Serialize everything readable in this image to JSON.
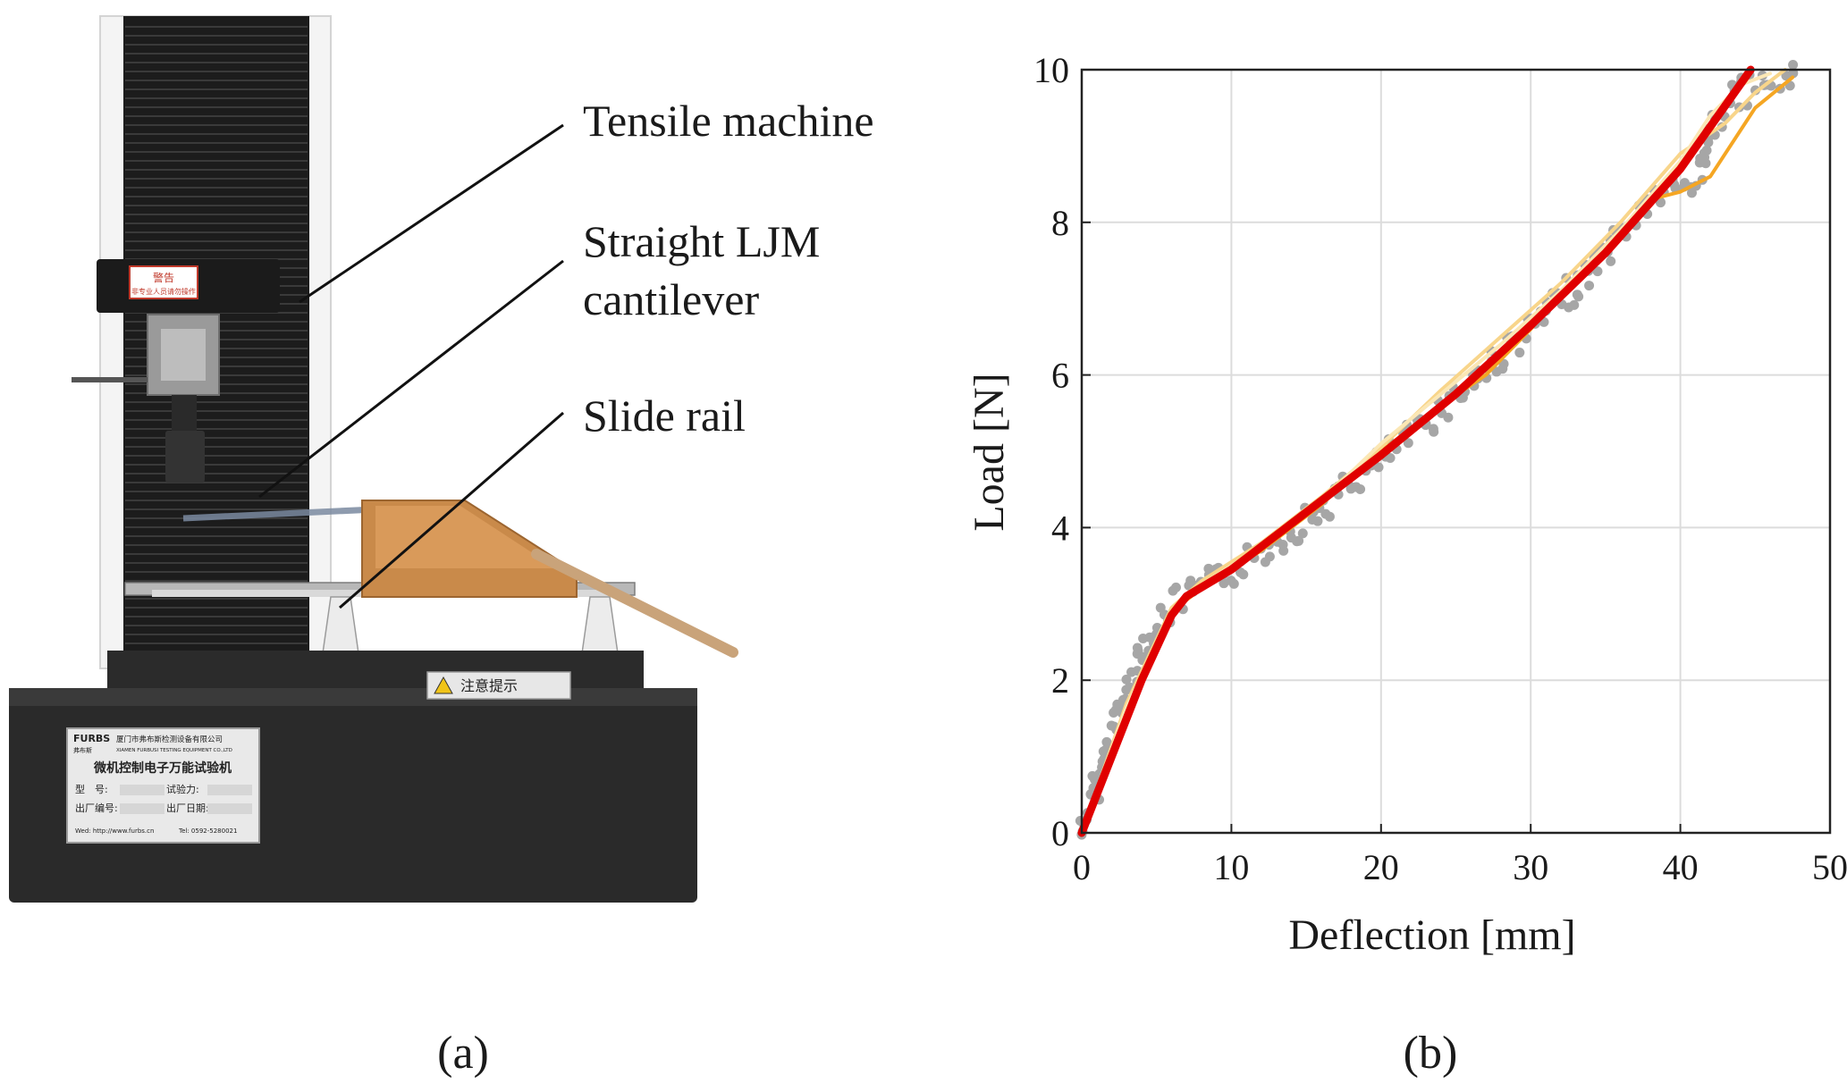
{
  "panels": {
    "a": {
      "label": "(a)",
      "annotations": [
        {
          "id": "tensile-machine",
          "lines": [
            "Tensile machine"
          ]
        },
        {
          "id": "cantilever",
          "lines": [
            "Straight LJM",
            "cantilever"
          ]
        },
        {
          "id": "slide-rail",
          "lines": [
            "Slide rail"
          ]
        }
      ],
      "machine_labels": {
        "warning_title": "警告",
        "warning_text": "非专业人员请勿操作",
        "brand": "FURBS",
        "brand_sub": "弗布斯",
        "company_cn": "厦门市弗布斯检测设备有限公司",
        "company_en": "XIAMEN FURBUSI TESTING EQUIPMENT CO.,LTD",
        "machine_name": "微机控制电子万能试验机",
        "field_model": "型　号:",
        "field_force": "试验力:",
        "field_serial": "出厂编号:",
        "field_date": "出厂日期:",
        "web": "Wed: http://www.furbs.cn",
        "tel": "Tel: 0592-5280021",
        "base_warning": "注意提示"
      }
    },
    "b": {
      "label": "(b)"
    }
  },
  "chart_data": {
    "type": "line",
    "xlabel": "Deflection [mm]",
    "ylabel": "Load [N]",
    "xlim": [
      0,
      50
    ],
    "ylim": [
      0,
      10
    ],
    "xticks": [
      0,
      10,
      20,
      30,
      40,
      50
    ],
    "yticks": [
      0,
      2,
      4,
      6,
      8,
      10
    ],
    "grid": true,
    "legend": "none",
    "series": [
      {
        "role": "measured",
        "color": "#a6a6a6",
        "style": "dots",
        "x": [
          0,
          2,
          4,
          6,
          7,
          10,
          14,
          18,
          22,
          26,
          30,
          34,
          38,
          41,
          42,
          44,
          46,
          48
        ],
        "y": [
          0,
          1.3,
          2.4,
          2.95,
          3.1,
          3.4,
          3.95,
          4.55,
          5.2,
          5.9,
          6.6,
          7.35,
          8.3,
          8.5,
          9.2,
          9.7,
          9.8,
          9.9
        ]
      },
      {
        "role": "test",
        "color": "#f5a623",
        "style": "line",
        "x": [
          0,
          3,
          6,
          8,
          12,
          16,
          20,
          24,
          27,
          30,
          34,
          38,
          40,
          42,
          43,
          45,
          47.5
        ],
        "y": [
          0,
          1.6,
          2.9,
          3.2,
          3.7,
          4.3,
          5.0,
          5.6,
          6.0,
          6.6,
          7.5,
          8.3,
          8.4,
          8.6,
          8.9,
          9.5,
          9.9
        ]
      },
      {
        "role": "test",
        "color": "#f8d58a",
        "style": "line",
        "x": [
          0,
          3,
          6,
          8,
          12,
          16,
          20,
          24,
          28,
          32,
          36,
          40,
          43,
          45,
          47
        ],
        "y": [
          0,
          1.7,
          2.95,
          3.3,
          3.8,
          4.4,
          5.05,
          5.8,
          6.5,
          7.2,
          8.0,
          8.9,
          9.3,
          9.7,
          10
        ]
      },
      {
        "role": "test",
        "color": "#fbe7b5",
        "style": "line",
        "x": [
          0,
          3,
          6,
          8,
          12,
          16,
          20,
          24,
          28,
          32,
          36,
          40,
          42,
          44,
          46
        ],
        "y": [
          0,
          1.65,
          2.9,
          3.25,
          3.75,
          4.35,
          5.1,
          5.75,
          6.4,
          7.1,
          7.9,
          8.8,
          9.4,
          9.8,
          9.95
        ]
      },
      {
        "role": "model",
        "color": "#e00000",
        "style": "thick-line",
        "x": [
          0,
          2,
          4,
          6,
          7,
          10,
          15,
          20,
          25,
          30,
          35,
          40,
          44.7
        ],
        "y": [
          0,
          1.0,
          2.0,
          2.85,
          3.1,
          3.45,
          4.2,
          4.95,
          5.75,
          6.65,
          7.6,
          8.7,
          10
        ]
      }
    ]
  }
}
